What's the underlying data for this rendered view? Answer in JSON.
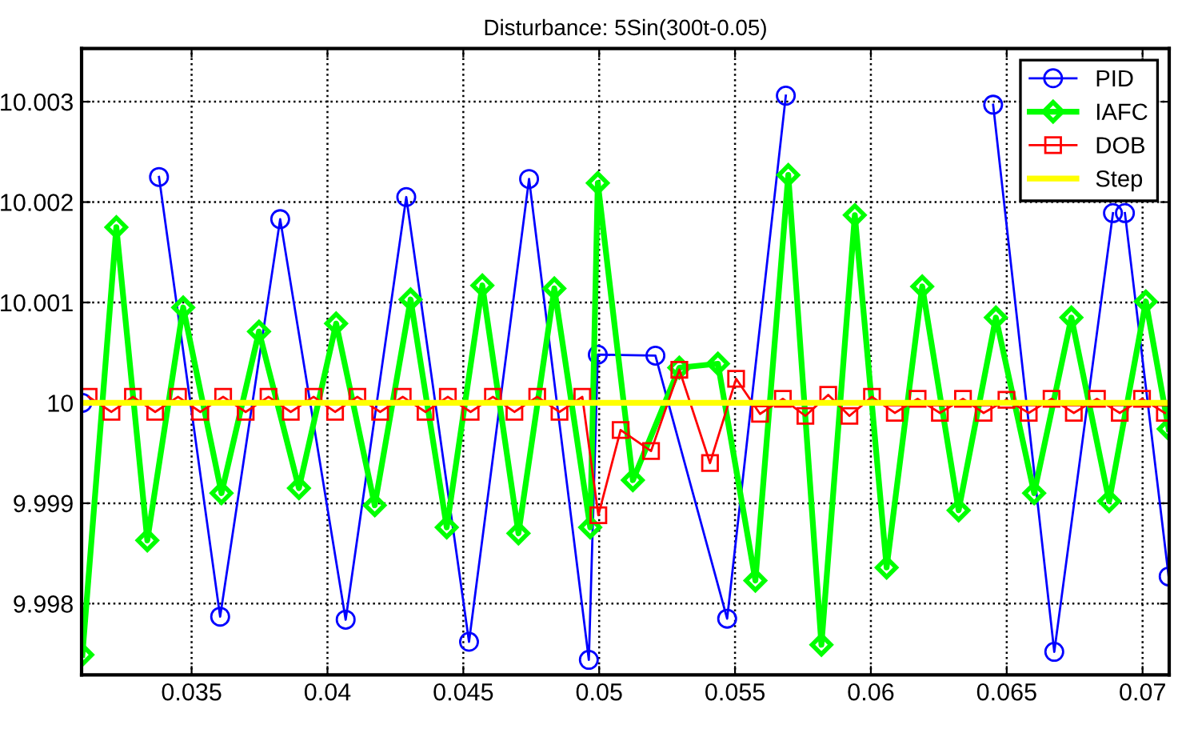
{
  "chart_data": {
    "type": "line",
    "title": "Disturbance: 5Sin(300t-0.05)",
    "xlim": [
      0.03095,
      0.07098
    ],
    "ylim": [
      9.99729,
      10.00353
    ],
    "xticks": [
      0.035,
      {
        "value": 0.04,
        "label": "0.04"
      },
      0.045,
      {
        "value": 0.05,
        "label": "0.05"
      },
      0.055,
      {
        "value": 0.06,
        "label": "0.06"
      },
      0.065,
      {
        "value": 0.07,
        "label": "0.07"
      }
    ],
    "yticks": [
      9.998,
      9.999,
      {
        "value": 10.0,
        "label": "10"
      },
      10.001,
      10.002,
      10.003
    ],
    "grid": true,
    "legend": "top right",
    "series": [
      {
        "name": "PID",
        "color": "#0000ff",
        "marker": "circle",
        "x": [
          0.03098,
          0.032,
          0.0338,
          0.03605,
          0.03826,
          0.04067,
          0.0429,
          0.04521,
          0.04742,
          0.04962,
          0.04995,
          0.05207,
          0.05471,
          0.05687,
          0.05829,
          0.05927,
          0.06058,
          0.06107,
          0.06245,
          0.06309,
          0.0645,
          0.06675,
          0.06891,
          0.06915,
          0.06935,
          0.07096
        ],
        "values": [
          10.0,
          null,
          10.00225,
          9.99787,
          10.00183,
          9.99784,
          10.00205,
          9.99762,
          10.00223,
          9.99744,
          10.00048,
          10.00047,
          9.99785,
          10.00306,
          null,
          null,
          null,
          null,
          null,
          null,
          10.00297,
          9.99752,
          10.00189,
          null,
          10.00189,
          9.99827
        ]
      },
      {
        "name": "IAFC",
        "color": "#00ff00",
        "marker": "diamond",
        "x": [
          0.03098,
          0.03223,
          0.03337,
          0.03469,
          0.0361,
          0.03748,
          0.03895,
          0.04032,
          0.04174,
          0.04306,
          0.04439,
          0.0457,
          0.04703,
          0.04835,
          0.04967,
          0.04995,
          0.05124,
          0.05295,
          0.05437,
          0.05575,
          0.05696,
          0.05818,
          0.05941,
          0.06058,
          0.06189,
          0.06323,
          0.0646,
          0.06601,
          0.06738,
          0.06877,
          0.07012,
          0.07096
        ],
        "values": [
          9.99749,
          10.00175,
          9.99863,
          10.00095,
          9.9991,
          10.00071,
          9.99915,
          10.00079,
          9.99898,
          10.00103,
          9.99876,
          10.00117,
          9.9987,
          10.00114,
          9.99876,
          10.00219,
          9.99923,
          10.00035,
          10.00039,
          9.99823,
          10.00227,
          9.99759,
          10.00187,
          9.99836,
          10.00116,
          9.99893,
          10.00085,
          9.9991,
          10.00085,
          9.99902,
          10.00101,
          9.99974
        ]
      },
      {
        "name": "DOB",
        "color": "#ff0000",
        "marker": "square",
        "x": [
          0.03121,
          0.03205,
          0.03284,
          0.03366,
          0.0345,
          0.03532,
          0.03616,
          0.03699,
          0.03783,
          0.03865,
          0.03949,
          0.04028,
          0.0411,
          0.04194,
          0.04277,
          0.04361,
          0.04443,
          0.04527,
          0.04609,
          0.04688,
          0.04772,
          0.04854,
          0.04938,
          0.04997,
          0.05079,
          0.05191,
          0.05295,
          0.05408,
          0.05504,
          0.05592,
          0.05676,
          0.05759,
          0.05843,
          0.05921,
          0.06004,
          0.06088,
          0.06172,
          0.06254,
          0.06339,
          0.06415,
          0.06499,
          0.06581,
          0.06665,
          0.06747,
          0.06832,
          0.06916,
          0.06998,
          0.07082
        ],
        "values": [
          10.00006,
          9.99991,
          10.00006,
          9.99991,
          10.00006,
          9.99991,
          10.00006,
          9.99991,
          10.00006,
          9.99991,
          10.00006,
          9.99991,
          10.00006,
          9.99991,
          10.00006,
          9.99991,
          10.00006,
          9.99991,
          10.00006,
          9.99991,
          10.00006,
          9.99991,
          10.00006,
          9.99888,
          9.99973,
          9.99952,
          10.00033,
          9.9994,
          10.00024,
          9.99989,
          10.00004,
          9.99987,
          10.00008,
          9.99987,
          10.00006,
          9.9999,
          10.00004,
          9.9999,
          10.00004,
          9.9999,
          10.00003,
          9.9999,
          10.00004,
          9.9999,
          10.00004,
          9.9999,
          10.00004,
          9.9999
        ]
      },
      {
        "name": "Step",
        "color": "#ffff00",
        "marker": "none",
        "x": [
          0.03098,
          0.07096
        ],
        "values": [
          10.0,
          10.0
        ]
      }
    ]
  }
}
